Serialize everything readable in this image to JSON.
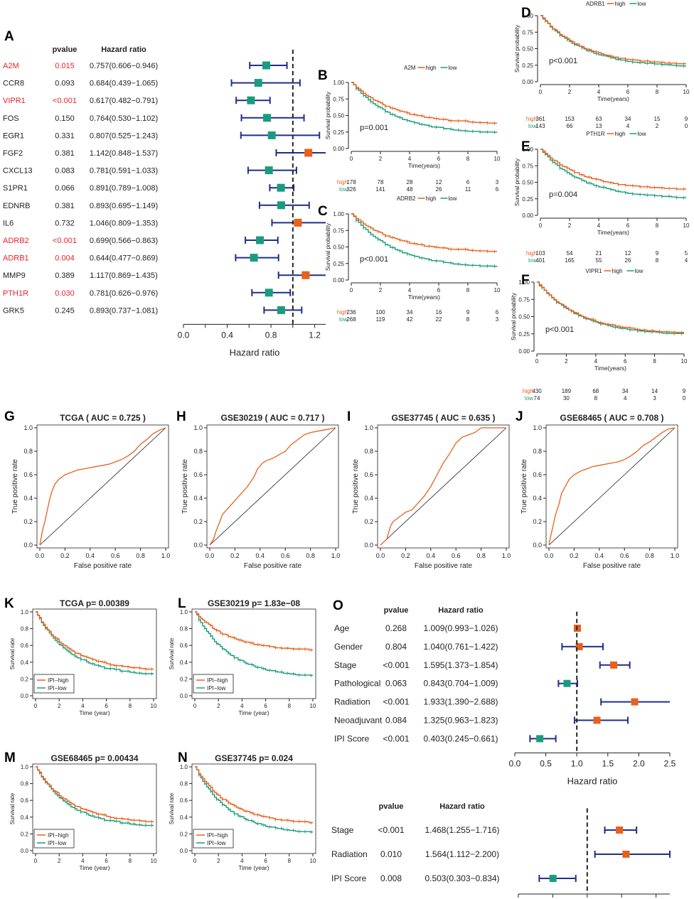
{
  "colors": {
    "high": "#E8601C",
    "low": "#1A9C7C",
    "sig": "#E8242B",
    "ci": "#1F2F8C",
    "hrHigh": "#E8601C",
    "hrLow": "#1A9C7C"
  },
  "legend_text": {
    "high": "high",
    "low": "low",
    "ipi_high": "IPI−high",
    "ipi_low": "IPI−low",
    "pvalue": "pvalue",
    "hr": "Hazard ratio"
  },
  "chart_data": [
    {
      "panel": "A",
      "type": "forest",
      "title": "",
      "xlabel": "Hazard ratio",
      "xlim": [
        0,
        1.3
      ],
      "ticks": [
        "0.0",
        "0.4",
        "0.8",
        "1.2"
      ],
      "ref": 1,
      "rows": [
        {
          "gene": "A2M",
          "p": "0.015",
          "hr": "0.757(0.606−0.946)",
          "est": 0.757,
          "lo": 0.606,
          "hi": 0.946,
          "sig": true
        },
        {
          "gene": "CCR8",
          "p": "0.093",
          "hr": "0.684(0.439−1.065)",
          "est": 0.684,
          "lo": 0.439,
          "hi": 1.065,
          "sig": false
        },
        {
          "gene": "VIPR1",
          "p": "<0.001",
          "hr": "0.617(0.482−0.791)",
          "est": 0.617,
          "lo": 0.482,
          "hi": 0.791,
          "sig": true
        },
        {
          "gene": "FOS",
          "p": "0.150",
          "hr": "0.764(0.530−1.102)",
          "est": 0.764,
          "lo": 0.53,
          "hi": 1.102,
          "sig": false
        },
        {
          "gene": "EGR1",
          "p": "0.331",
          "hr": "0.807(0.525−1.243)",
          "est": 0.807,
          "lo": 0.525,
          "hi": 1.243,
          "sig": false
        },
        {
          "gene": "FGF2",
          "p": "0.381",
          "hr": "1.142(0.848−1.537)",
          "est": 1.142,
          "lo": 0.848,
          "hi": 1.537,
          "sig": false
        },
        {
          "gene": "CXCL13",
          "p": "0.083",
          "hr": "0.781(0.591−1.033)",
          "est": 0.781,
          "lo": 0.591,
          "hi": 1.033,
          "sig": false
        },
        {
          "gene": "S1PR1",
          "p": "0.066",
          "hr": "0.891(0.789−1.008)",
          "est": 0.891,
          "lo": 0.789,
          "hi": 1.008,
          "sig": false
        },
        {
          "gene": "EDNRB",
          "p": "0.381",
          "hr": "0.893(0.695−1.149)",
          "est": 0.893,
          "lo": 0.695,
          "hi": 1.149,
          "sig": false
        },
        {
          "gene": "IL6",
          "p": "0.732",
          "hr": "1.046(0.809−1.353)",
          "est": 1.046,
          "lo": 0.809,
          "hi": 1.353,
          "sig": false
        },
        {
          "gene": "ADRB2",
          "p": "<0.001",
          "hr": "0.699(0.566−0.863)",
          "est": 0.699,
          "lo": 0.566,
          "hi": 0.863,
          "sig": true
        },
        {
          "gene": "ADRB1",
          "p": "0.004",
          "hr": "0.644(0.477−0.869)",
          "est": 0.644,
          "lo": 0.477,
          "hi": 0.869,
          "sig": true
        },
        {
          "gene": "MMP9",
          "p": "0.389",
          "hr": "1.117(0.869−1.435)",
          "est": 1.117,
          "lo": 0.869,
          "hi": 1.435,
          "sig": false
        },
        {
          "gene": "PTH1R",
          "p": "0.030",
          "hr": "0.781(0.626−0.976)",
          "est": 0.781,
          "lo": 0.626,
          "hi": 0.976,
          "sig": true
        },
        {
          "gene": "GRK5",
          "p": "0.245",
          "hr": "0.893(0.737−1.081)",
          "est": 0.893,
          "lo": 0.737,
          "hi": 1.081,
          "sig": false
        }
      ]
    },
    {
      "panel": "B",
      "type": "km",
      "title": "A2M",
      "ylabel": "Survival probability",
      "xlabel": "Time(years)",
      "pval": "p=0.001",
      "xticks": [
        "0",
        "2",
        "4",
        "6",
        "8",
        "10"
      ],
      "yticks": [
        "0.00",
        "0.25",
        "0.50",
        "0.75",
        "1.00"
      ],
      "high_end": 0.37,
      "low_end": 0.22,
      "risk_high": [
        "178",
        "78",
        "28",
        "12",
        "6",
        "3"
      ],
      "risk_low": [
        "326",
        "141",
        "48",
        "26",
        "11",
        "6"
      ]
    },
    {
      "panel": "C",
      "type": "km",
      "title": "ADRB2",
      "ylabel": "Survival probability",
      "xlabel": "Time(years)",
      "pval": "p<0.001",
      "xticks": [
        "0",
        "2",
        "4",
        "6",
        "8",
        "10"
      ],
      "yticks": [
        "0.00",
        "0.25",
        "0.50",
        "0.75",
        "1.00"
      ],
      "high_end": 0.42,
      "low_end": 0.18,
      "risk_high": [
        "236",
        "100",
        "34",
        "16",
        "9",
        "6"
      ],
      "risk_low": [
        "268",
        "119",
        "42",
        "22",
        "8",
        "3"
      ]
    },
    {
      "panel": "D",
      "type": "km",
      "title": "ADRB1",
      "ylabel": "Survival probability",
      "xlabel": "Time(years)",
      "pval": "p<0.001",
      "xticks": [
        "0",
        "2",
        "4",
        "6",
        "8",
        "10"
      ],
      "yticks": [
        "0.00",
        "0.25",
        "0.50",
        "0.75",
        "1.00"
      ],
      "high_end": 0.25,
      "low_end": 0.22,
      "risk_high": [
        "361",
        "153",
        "63",
        "34",
        "15",
        "9"
      ],
      "risk_low": [
        "143",
        "66",
        "13",
        "4",
        "2",
        "0"
      ]
    },
    {
      "panel": "E",
      "type": "km",
      "title": "PTH1R",
      "ylabel": "Survival probability",
      "xlabel": "Time(years)",
      "pval": "p=0.004",
      "xticks": [
        "0",
        "2",
        "4",
        "6",
        "8",
        "10"
      ],
      "yticks": [
        "0.00",
        "0.25",
        "0.50",
        "0.75",
        "1.00"
      ],
      "high_end": 0.38,
      "low_end": 0.25,
      "risk_high": [
        "103",
        "54",
        "21",
        "12",
        "9",
        "5"
      ],
      "risk_low": [
        "401",
        "165",
        "55",
        "26",
        "8",
        "4"
      ]
    },
    {
      "panel": "F",
      "type": "km",
      "title": "VIPR1",
      "ylabel": "Survival probability",
      "xlabel": "Time(years)",
      "pval": "p<0.001",
      "xticks": [
        "0",
        "2",
        "4",
        "6",
        "8",
        "10"
      ],
      "yticks": [
        "0.00",
        "0.25",
        "0.50",
        "0.75",
        "1.00"
      ],
      "high_end": 0.25,
      "low_end": 0.23,
      "risk_high": [
        "430",
        "189",
        "68",
        "34",
        "14",
        "9"
      ],
      "risk_low": [
        "74",
        "30",
        "8",
        "4",
        "3",
        "0"
      ]
    },
    {
      "panel": "G",
      "type": "roc",
      "title": "TCGA ( AUC =  0.725 )",
      "xlabel": "False positive rate",
      "ylabel": "True positive rate",
      "ticks": [
        "0.0",
        "0.2",
        "0.4",
        "0.6",
        "0.8",
        "1.0"
      ],
      "x": [
        0,
        0.01,
        0.02,
        0.04,
        0.06,
        0.08,
        0.1,
        0.12,
        0.15,
        0.2,
        0.25,
        0.3,
        0.35,
        0.4,
        0.45,
        0.5,
        0.55,
        0.6,
        0.65,
        0.7,
        0.75,
        0.8,
        0.85,
        0.9,
        0.95,
        1
      ],
      "y": [
        0,
        0.06,
        0.12,
        0.2,
        0.3,
        0.4,
        0.47,
        0.52,
        0.56,
        0.6,
        0.62,
        0.64,
        0.65,
        0.66,
        0.67,
        0.68,
        0.69,
        0.71,
        0.73,
        0.76,
        0.8,
        0.86,
        0.9,
        0.95,
        0.98,
        1
      ]
    },
    {
      "panel": "H",
      "type": "roc",
      "title": "GSE30219 ( AUC =  0.717 )",
      "xlabel": "False positive rate",
      "ylabel": "True positive rate",
      "ticks": [
        "0.0",
        "0.2",
        "0.4",
        "0.6",
        "0.8",
        "1.0"
      ],
      "x": [
        0,
        0.03,
        0.05,
        0.08,
        0.1,
        0.15,
        0.2,
        0.25,
        0.3,
        0.35,
        0.38,
        0.42,
        0.45,
        0.5,
        0.55,
        0.6,
        0.65,
        0.7,
        0.75,
        0.8,
        0.9,
        1
      ],
      "y": [
        0,
        0.05,
        0.12,
        0.2,
        0.26,
        0.32,
        0.38,
        0.44,
        0.5,
        0.58,
        0.65,
        0.7,
        0.72,
        0.74,
        0.77,
        0.8,
        0.86,
        0.9,
        0.94,
        0.96,
        0.98,
        1
      ]
    },
    {
      "panel": "I",
      "type": "roc",
      "title": "GSE37745 ( AUC =  0.635 )",
      "xlabel": "False positive rate",
      "ylabel": "True positive rate",
      "ticks": [
        "0.0",
        "0.2",
        "0.4",
        "0.6",
        "0.8",
        "1.0"
      ],
      "x": [
        0,
        0.05,
        0.08,
        0.1,
        0.15,
        0.2,
        0.25,
        0.3,
        0.35,
        0.4,
        0.45,
        0.5,
        0.55,
        0.6,
        0.65,
        0.7,
        0.75,
        0.8,
        0.9,
        1
      ],
      "y": [
        0,
        0.05,
        0.16,
        0.2,
        0.24,
        0.28,
        0.3,
        0.36,
        0.42,
        0.5,
        0.6,
        0.7,
        0.78,
        0.87,
        0.92,
        0.94,
        0.96,
        1,
        1,
        1
      ]
    },
    {
      "panel": "J",
      "type": "roc",
      "title": "GSE68465 ( AUC =  0.708 )",
      "xlabel": "False positive rate",
      "ylabel": "True positive rate",
      "ticks": [
        "0.0",
        "0.2",
        "0.4",
        "0.6",
        "0.8",
        "1.0"
      ],
      "x": [
        0,
        0.01,
        0.03,
        0.05,
        0.08,
        0.1,
        0.13,
        0.16,
        0.2,
        0.25,
        0.3,
        0.35,
        0.4,
        0.45,
        0.5,
        0.55,
        0.6,
        0.65,
        0.7,
        0.75,
        0.8,
        0.85,
        0.9,
        0.95,
        1
      ],
      "y": [
        0,
        0.06,
        0.15,
        0.25,
        0.35,
        0.44,
        0.5,
        0.56,
        0.6,
        0.63,
        0.65,
        0.67,
        0.68,
        0.69,
        0.7,
        0.71,
        0.73,
        0.76,
        0.8,
        0.85,
        0.88,
        0.92,
        0.96,
        0.99,
        1
      ]
    },
    {
      "panel": "K",
      "type": "km",
      "title": "TCGA p= 0.00389",
      "ylabel": "Survival rate",
      "xlabel": "Time (year)",
      "legend": true,
      "xticks": [
        "0",
        "2",
        "4",
        "6",
        "8",
        "10"
      ],
      "yticks": [
        "0.0",
        "0.2",
        "0.4",
        "0.6",
        "0.8",
        "1.0"
      ],
      "high_end": 0.3,
      "low_end": 0.24
    },
    {
      "panel": "L",
      "type": "km",
      "title": "GSE30219 p= 1.83e−08",
      "ylabel": "Survival rate",
      "xlabel": "Time (year)",
      "legend": true,
      "xticks": [
        "0",
        "2",
        "4",
        "6",
        "8",
        "10"
      ],
      "yticks": [
        "0.0",
        "0.2",
        "0.4",
        "0.6",
        "0.8",
        "1.0"
      ],
      "high_end": 0.54,
      "low_end": 0.22
    },
    {
      "panel": "M",
      "type": "km",
      "title": "GSE68465 p= 0.00434",
      "ylabel": "Survival rate",
      "xlabel": "Time (year)",
      "legend": true,
      "xticks": [
        "0",
        "2",
        "4",
        "6",
        "8",
        "10"
      ],
      "yticks": [
        "0.0",
        "0.2",
        "0.4",
        "0.6",
        "0.8",
        "1.0"
      ],
      "high_end": 0.33,
      "low_end": 0.28
    },
    {
      "panel": "N",
      "type": "km",
      "title": "GSE37745 p= 0.024",
      "ylabel": "Survival rate",
      "xlabel": "Time (year)",
      "legend": true,
      "xticks": [
        "0",
        "2",
        "4",
        "6",
        "8",
        "10"
      ],
      "yticks": [
        "0.0",
        "0.2",
        "0.4",
        "0.6",
        "0.8",
        "1.0"
      ],
      "high_end": 0.32,
      "low_end": 0.2
    },
    {
      "panel": "O1",
      "type": "forest",
      "xlabel": "Hazard ratio",
      "xlim": [
        0,
        2.5
      ],
      "ticks": [
        "0.0",
        "0.5",
        "1.0",
        "1.5",
        "2.0",
        "2.5"
      ],
      "ref": 1,
      "rows": [
        {
          "gene": "Age",
          "p": "0.268",
          "hr": "1.009(0.993−1.026)",
          "est": 1.009,
          "lo": 0.993,
          "hi": 1.026
        },
        {
          "gene": "Gender",
          "p": "0.804",
          "hr": "1.040(0.761−1.422)",
          "est": 1.04,
          "lo": 0.761,
          "hi": 1.422
        },
        {
          "gene": "Stage",
          "p": "<0.001",
          "hr": "1.595(1.373−1.854)",
          "est": 1.595,
          "lo": 1.373,
          "hi": 1.854
        },
        {
          "gene": "Pathological",
          "p": "0.063",
          "hr": "0.843(0.704−1.009)",
          "est": 0.843,
          "lo": 0.704,
          "hi": 1.009
        },
        {
          "gene": "Radiation",
          "p": "<0.001",
          "hr": "1.933(1.390−2.688)",
          "est": 1.933,
          "lo": 1.39,
          "hi": 2.688
        },
        {
          "gene": "Neoadjuvant",
          "p": "0.084",
          "hr": "1.325(0.963−1.823)",
          "est": 1.325,
          "lo": 0.963,
          "hi": 1.823
        },
        {
          "gene": "IPI Score",
          "p": "<0.001",
          "hr": "0.403(0.245−0.661)",
          "est": 0.403,
          "lo": 0.245,
          "hi": 0.661
        }
      ]
    },
    {
      "panel": "O2",
      "type": "forest",
      "xlabel": "Hazard ratio",
      "xlim": [
        0,
        2.2
      ],
      "ticks": [
        "0.0",
        "0.5",
        "1.0",
        "1.5",
        "2.0"
      ],
      "ref": 1,
      "rows": [
        {
          "gene": "Stage",
          "p": "<0.001",
          "hr": "1.468(1.255−1.716)",
          "est": 1.468,
          "lo": 1.255,
          "hi": 1.716
        },
        {
          "gene": "Radiation",
          "p": "0.010",
          "hr": "1.564(1.112−2.200)",
          "est": 1.564,
          "lo": 1.112,
          "hi": 2.2
        },
        {
          "gene": "IPI Score",
          "p": "0.008",
          "hr": "0.503(0.303−0.834)",
          "est": 0.503,
          "lo": 0.303,
          "hi": 0.834
        }
      ]
    }
  ]
}
